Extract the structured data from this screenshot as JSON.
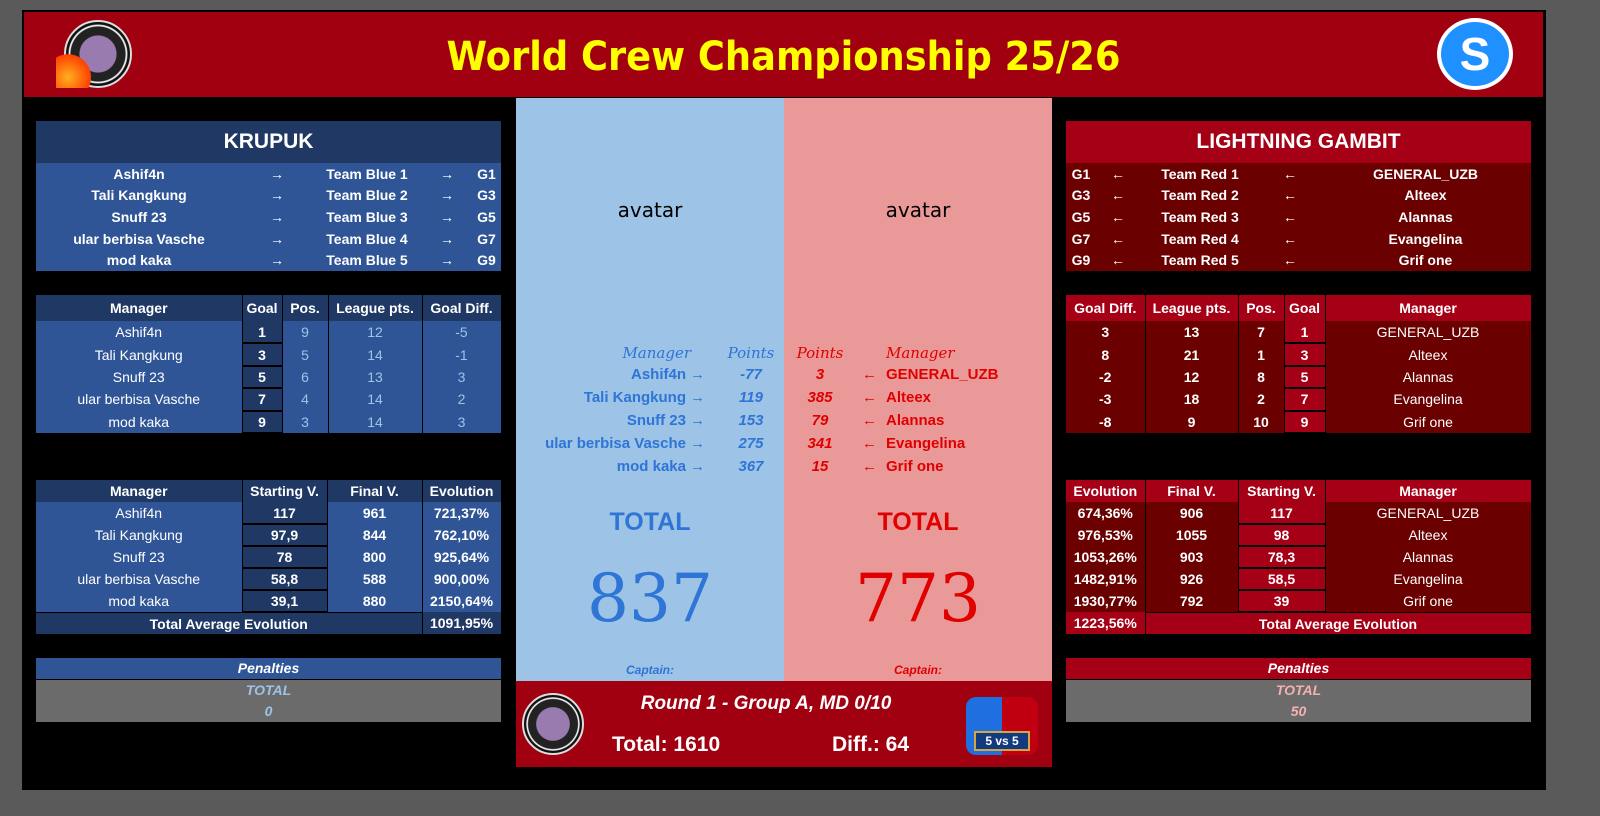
{
  "header": {
    "title": "World Crew Championship 25/26",
    "logo_text": "WORLD CREW CHAMPIONSHIP",
    "right_logo": "S"
  },
  "colors": {
    "header_red": "#a00010",
    "title_yellow": "#ffff00",
    "blue_panel": "#9dc3e6",
    "red_panel": "#ea9999",
    "blue_text": "#2e75d6",
    "red_text": "#e00000"
  },
  "blue_team": {
    "name": "KRUPUK",
    "lineup": [
      {
        "manager": "Ashif4n",
        "arrow": "→",
        "team": "Team Blue 1",
        "arrow2": "→",
        "goal": "G1"
      },
      {
        "manager": "Tali Kangkung",
        "arrow": "→",
        "team": "Team Blue 2",
        "arrow2": "→",
        "goal": "G3"
      },
      {
        "manager": "Snuff 23",
        "arrow": "→",
        "team": "Team Blue 3",
        "arrow2": "→",
        "goal": "G5"
      },
      {
        "manager": "ular berbisa Vasche",
        "arrow": "→",
        "team": "Team Blue 4",
        "arrow2": "→",
        "goal": "G7"
      },
      {
        "manager": "mod kaka",
        "arrow": "→",
        "team": "Team Blue 5",
        "arrow2": "→",
        "goal": "G9"
      }
    ],
    "stats_headers": [
      "Manager",
      "Goal",
      "Pos.",
      "League pts.",
      "Goal Diff."
    ],
    "stats": [
      [
        "Ashif4n",
        "1",
        "9",
        "12",
        "-5"
      ],
      [
        "Tali Kangkung",
        "3",
        "5",
        "14",
        "-1"
      ],
      [
        "Snuff 23",
        "5",
        "6",
        "13",
        "3"
      ],
      [
        "ular berbisa Vasche",
        "7",
        "4",
        "14",
        "2"
      ],
      [
        "mod kaka",
        "9",
        "3",
        "14",
        "3"
      ]
    ],
    "evo_headers": [
      "Manager",
      "Starting V.",
      "Final V.",
      "Evolution"
    ],
    "evo": [
      [
        "Ashif4n",
        "117",
        "961",
        "721,37%"
      ],
      [
        "Tali Kangkung",
        "97,9",
        "844",
        "762,10%"
      ],
      [
        "Snuff 23",
        "78",
        "800",
        "925,64%"
      ],
      [
        "ular berbisa Vasche",
        "58,8",
        "588",
        "900,00%"
      ],
      [
        "mod kaka",
        "39,1",
        "880",
        "2150,64%"
      ]
    ],
    "evo_total_label": "Total Average Evolution",
    "evo_total": "1091,95%",
    "penalties_label": "Penalties",
    "penalties_total_label": "TOTAL",
    "penalties_value": "0",
    "avatar": "avatar",
    "col_manager": "Manager",
    "col_points": "Points",
    "points": [
      {
        "manager": "Ashif4n",
        "arrow": "→",
        "points": "-77"
      },
      {
        "manager": "Tali Kangkung",
        "arrow": "→",
        "points": "119"
      },
      {
        "manager": "Snuff 23",
        "arrow": "→",
        "points": "153"
      },
      {
        "manager": "ular berbisa Vasche",
        "arrow": "→",
        "points": "275"
      },
      {
        "manager": "mod kaka",
        "arrow": "→",
        "points": "367"
      }
    ],
    "total_label": "TOTAL",
    "total": "837",
    "captain": "Captain:"
  },
  "red_team": {
    "name": "LIGHTNING GAMBIT",
    "lineup": [
      {
        "goal": "G1",
        "arrow": "←",
        "team": "Team Red 1",
        "arrow2": "←",
        "manager": "GENERAL_UZB"
      },
      {
        "goal": "G3",
        "arrow": "←",
        "team": "Team Red 2",
        "arrow2": "←",
        "manager": "Alteex"
      },
      {
        "goal": "G5",
        "arrow": "←",
        "team": "Team Red 3",
        "arrow2": "←",
        "manager": "Alannas"
      },
      {
        "goal": "G7",
        "arrow": "←",
        "team": "Team Red 4",
        "arrow2": "←",
        "manager": "Evangelina"
      },
      {
        "goal": "G9",
        "arrow": "←",
        "team": "Team Red 5",
        "arrow2": "←",
        "manager": "Grif one"
      }
    ],
    "stats_headers": [
      "Goal Diff.",
      "League pts.",
      "Pos.",
      "Goal",
      "Manager"
    ],
    "stats": [
      [
        "3",
        "13",
        "7",
        "1",
        "GENERAL_UZB"
      ],
      [
        "8",
        "21",
        "1",
        "3",
        "Alteex"
      ],
      [
        "-2",
        "12",
        "8",
        "5",
        "Alannas"
      ],
      [
        "-3",
        "18",
        "2",
        "7",
        "Evangelina"
      ],
      [
        "-8",
        "9",
        "10",
        "9",
        "Grif one"
      ]
    ],
    "evo_headers": [
      "Evolution",
      "Final V.",
      "Starting V.",
      "Manager"
    ],
    "evo": [
      [
        "674,36%",
        "906",
        "117",
        "GENERAL_UZB"
      ],
      [
        "976,53%",
        "1055",
        "98",
        "Alteex"
      ],
      [
        "1053,26%",
        "903",
        "78,3",
        "Alannas"
      ],
      [
        "1482,91%",
        "926",
        "58,5",
        "Evangelina"
      ],
      [
        "1930,77%",
        "792",
        "39",
        "Grif one"
      ]
    ],
    "evo_total_label": "Total Average Evolution",
    "evo_total": "1223,56%",
    "penalties_label": "Penalties",
    "penalties_total_label": "TOTAL",
    "penalties_value": "50",
    "avatar": "avatar",
    "col_manager": "Manager",
    "col_points": "Points",
    "points": [
      {
        "points": "3",
        "arrow": "←",
        "manager": "GENERAL_UZB"
      },
      {
        "points": "385",
        "arrow": "←",
        "manager": "Alteex"
      },
      {
        "points": "79",
        "arrow": "←",
        "manager": "Alannas"
      },
      {
        "points": "341",
        "arrow": "←",
        "manager": "Evangelina"
      },
      {
        "points": "15",
        "arrow": "←",
        "manager": "Grif one"
      }
    ],
    "total_label": "TOTAL",
    "total": "773",
    "captain": "Captain:"
  },
  "match": {
    "round": "Round 1 - Group A, MD 0/10",
    "total": "Total: 1610",
    "diff": "Diff.: 64",
    "badge": "5 vs 5"
  }
}
